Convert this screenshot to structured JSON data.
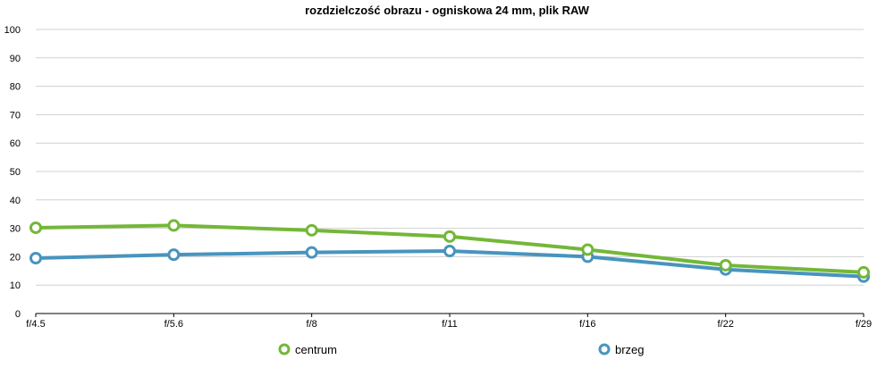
{
  "chart_data": {
    "type": "line",
    "title": "rozdzielczość obrazu - ogniskowa 24 mm, plik RAW",
    "xlabel": "",
    "ylabel": "",
    "categories": [
      "f/4.5",
      "f/5.6",
      "f/8",
      "f/11",
      "f/16",
      "f/22",
      "f/29"
    ],
    "ylim": [
      0,
      100
    ],
    "yticks": [
      0,
      10,
      20,
      30,
      40,
      50,
      60,
      70,
      80,
      90,
      100
    ],
    "grid": true,
    "legend_position": "bottom",
    "series": [
      {
        "name": "centrum",
        "color": "#73b738",
        "values": [
          30.2,
          31,
          29.3,
          27.1,
          22.5,
          17,
          14.5
        ]
      },
      {
        "name": "brzeg",
        "color": "#4894be",
        "values": [
          19.5,
          20.7,
          21.5,
          22,
          20,
          15.5,
          13
        ]
      }
    ]
  }
}
